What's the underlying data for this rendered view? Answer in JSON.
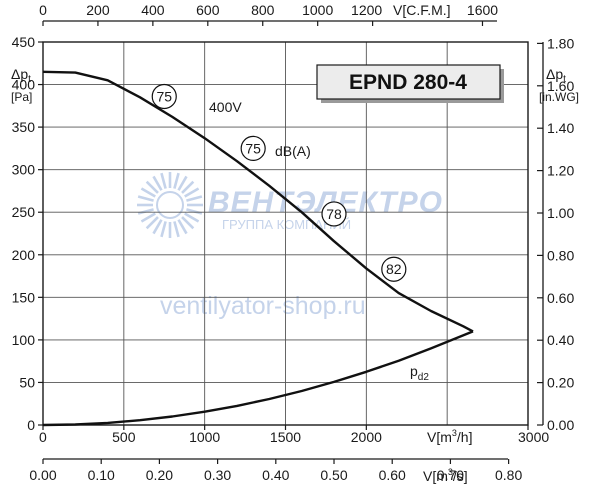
{
  "chart_data": {
    "type": "line",
    "title": "EPND 280-4",
    "axes": {
      "bottom": {
        "label": "V[m³/h]",
        "range": [
          0,
          3000
        ],
        "ticks": [
          "0",
          "500",
          "1000",
          "1500",
          "2000",
          "3000"
        ]
      },
      "bottom2": {
        "label": "V[m³/s]",
        "range": [
          0,
          0.8333
        ],
        "ticks": [
          "0.00",
          "0.10",
          "0.20",
          "0.30",
          "0.40",
          "0.50",
          "0.60",
          "0.70",
          "0.80"
        ]
      },
      "top": {
        "label": "V[C.F.M.]",
        "range": [
          0,
          1765.7
        ],
        "ticks": [
          "0",
          "200",
          "400",
          "600",
          "800",
          "1000",
          "1200",
          "1600"
        ]
      },
      "left": {
        "label_main": "Δp",
        "label_sub": "t",
        "label_unit": "[Pa]",
        "range": [
          0,
          450
        ],
        "ticks": [
          "0",
          "50",
          "100",
          "150",
          "200",
          "250",
          "300",
          "350",
          "400",
          "450"
        ]
      },
      "right": {
        "label_main": "Δp",
        "label_sub": "t",
        "label_unit": "[in.WG]",
        "range": [
          0,
          1.8066
        ],
        "ticks": [
          "0.00",
          "0.20",
          "0.40",
          "0.60",
          "0.80",
          "1.00",
          "1.20",
          "1.40",
          "1.60",
          "1.80"
        ]
      }
    },
    "grid": true,
    "series": [
      {
        "name": "400V",
        "x": [
          0,
          200,
          400,
          600,
          800,
          1000,
          1200,
          1400,
          1600,
          1800,
          2000,
          2200,
          2400,
          2600,
          2660
        ],
        "y": [
          415,
          414,
          405,
          385,
          362,
          337,
          310,
          281,
          250,
          216,
          184,
          155,
          134,
          116,
          110
        ]
      },
      {
        "name": "p",
        "name_sub": "d2",
        "x": [
          0,
          200,
          400,
          600,
          800,
          1000,
          1200,
          1400,
          1600,
          1800,
          2000,
          2200,
          2400,
          2660
        ],
        "y": [
          0,
          0.6,
          2.5,
          5.6,
          10,
          15.6,
          22.5,
          30.6,
          40,
          50.6,
          62.5,
          75.6,
          90,
          110
        ]
      }
    ],
    "sound_markers": [
      {
        "label": "75",
        "x": 750,
        "y": 386
      },
      {
        "label": "75",
        "x": 1300,
        "y": 325
      },
      {
        "label": "78",
        "x": 1800,
        "y": 248
      },
      {
        "label": "82",
        "x": 2170,
        "y": 183
      }
    ],
    "annotations": {
      "voltage": "400V",
      "sound_unit": "dB(A)"
    }
  },
  "watermark": {
    "brand": "ВЕНТЭЛЕКТРО",
    "subtitle": "ГРУППА КОМПАНИЙ",
    "site": "ventilyator-shop.ru",
    "color": "#c5d3ea"
  }
}
